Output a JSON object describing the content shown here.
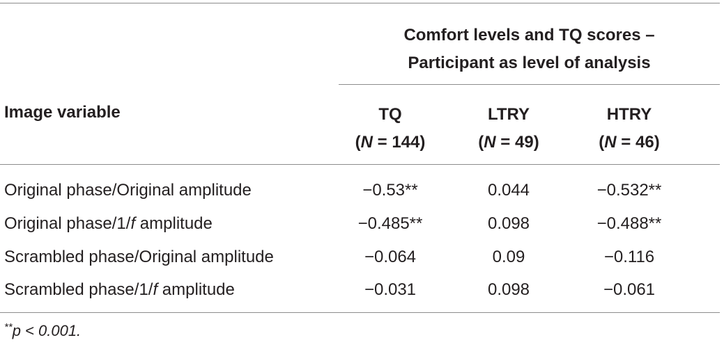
{
  "table": {
    "group_header": {
      "line1": "Comfort levels and TQ scores –",
      "line2": "Participant as level of analysis"
    },
    "row_header": "Image variable",
    "columns": [
      {
        "name": "TQ",
        "n_prefix": "(",
        "n_italic": "N",
        "n_suffix": " = 144)"
      },
      {
        "name": "LTRY",
        "n_prefix": "(",
        "n_italic": "N",
        "n_suffix": " = 49)"
      },
      {
        "name": "HTRY",
        "n_prefix": "(",
        "n_italic": "N",
        "n_suffix": " = 46)"
      }
    ],
    "rows": [
      {
        "pre": "Original phase/Original amplitude",
        "italic": "",
        "post": "",
        "values": [
          "−0.53**",
          "0.044",
          "−0.532**"
        ]
      },
      {
        "pre": "Original phase/1/",
        "italic": "f",
        "post": " amplitude",
        "values": [
          "−0.485**",
          "0.098",
          "−0.488**"
        ]
      },
      {
        "pre": "Scrambled phase/Original amplitude",
        "italic": "",
        "post": "",
        "values": [
          "−0.064",
          "0.09",
          "−0.116"
        ]
      },
      {
        "pre": "Scrambled phase/1/",
        "italic": "f",
        "post": " amplitude",
        "values": [
          "−0.031",
          "0.098",
          "−0.061"
        ]
      }
    ],
    "footnote": {
      "marker": "**",
      "text": "p < 0.001."
    }
  }
}
